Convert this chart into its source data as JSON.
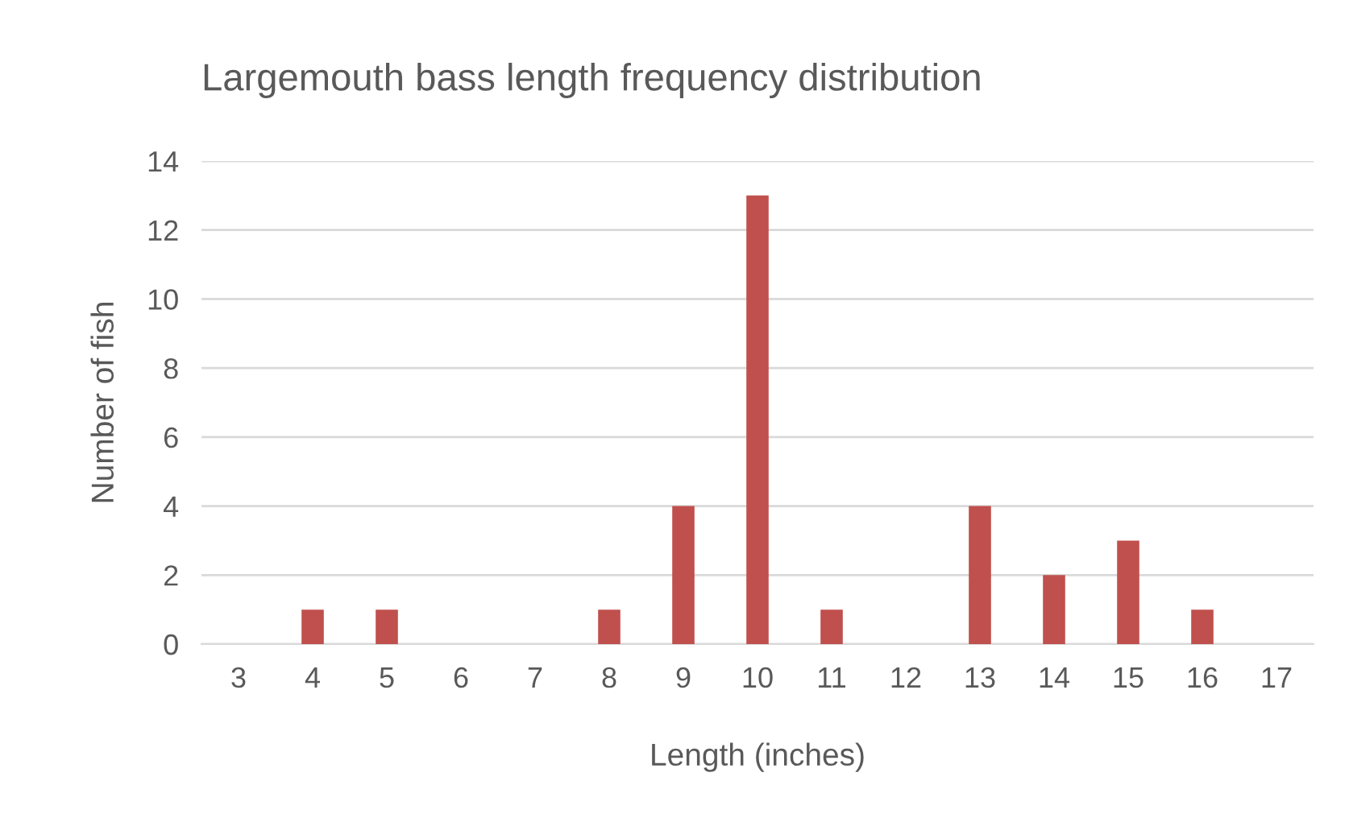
{
  "chart_data": {
    "type": "bar",
    "title": "Largemouth bass length frequency distribution",
    "xlabel": "Length (inches)",
    "ylabel": "Number of fish",
    "categories": [
      "3",
      "4",
      "5",
      "6",
      "7",
      "8",
      "9",
      "10",
      "11",
      "12",
      "13",
      "14",
      "15",
      "16",
      "17"
    ],
    "values": [
      0,
      1,
      1,
      0,
      0,
      1,
      4,
      13,
      1,
      0,
      4,
      2,
      3,
      1,
      0
    ],
    "color": "#c0504d",
    "ylim": [
      0,
      14
    ],
    "yticks": [
      0,
      2,
      4,
      6,
      8,
      10,
      12,
      14
    ],
    "grid": "y",
    "legend": false
  }
}
